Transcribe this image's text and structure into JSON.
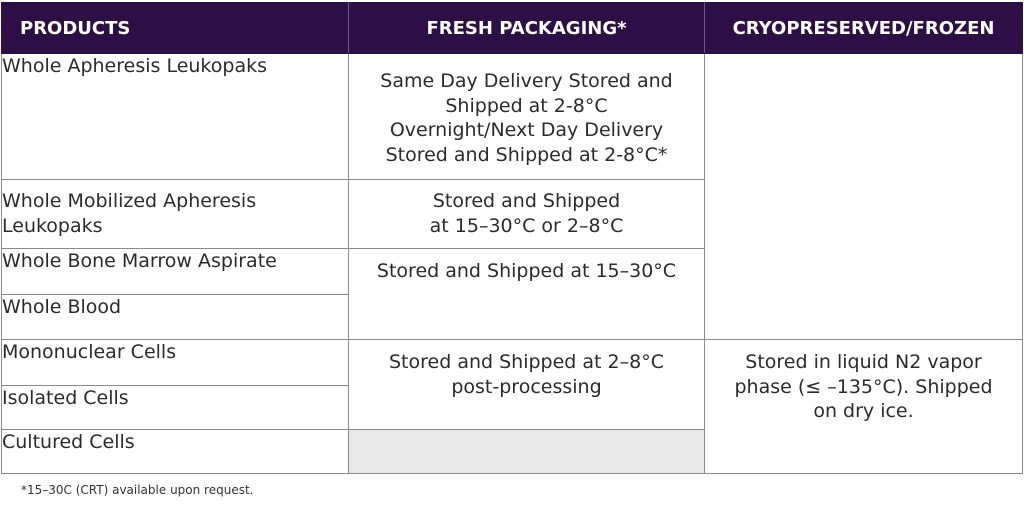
{
  "headers": {
    "products": "PRODUCTS",
    "fresh": "FRESH PACKAGING*",
    "cryo": "CRYOPRESERVED/FROZEN"
  },
  "products": [
    "Whole Apheresis Leukopaks",
    "Whole Mobilized Apheresis Leukopaks",
    "Whole Bone Marrow Aspirate",
    "Whole Blood",
    "Mononuclear Cells",
    "Isolated Cells",
    "Cultured Cells"
  ],
  "fresh": {
    "leukopak": [
      "Same Day Delivery Stored and",
      "Shipped at 2-8°C",
      "Overnight/Next Day Delivery",
      "Stored and Shipped at 2-8°C*"
    ],
    "mobilized": [
      "Stored and Shipped",
      "at 15–30°C or 2–8°C"
    ],
    "marrow_blood": "Stored and Shipped at 15–30°C",
    "processed": [
      "Stored and Shipped at 2–8°C",
      "post-processing"
    ]
  },
  "cryo": {
    "processed": [
      "Stored in liquid N2 vapor",
      "phase (≤ –135°C). Shipped",
      "on dry ice."
    ]
  },
  "footnote": "*15–30C (CRT) available upon request.",
  "colors": {
    "header_bg": "#2d0f46",
    "header_text": "#ffffff",
    "empty_cell": "#e8e8e8",
    "border": "#8a8a8a"
  }
}
